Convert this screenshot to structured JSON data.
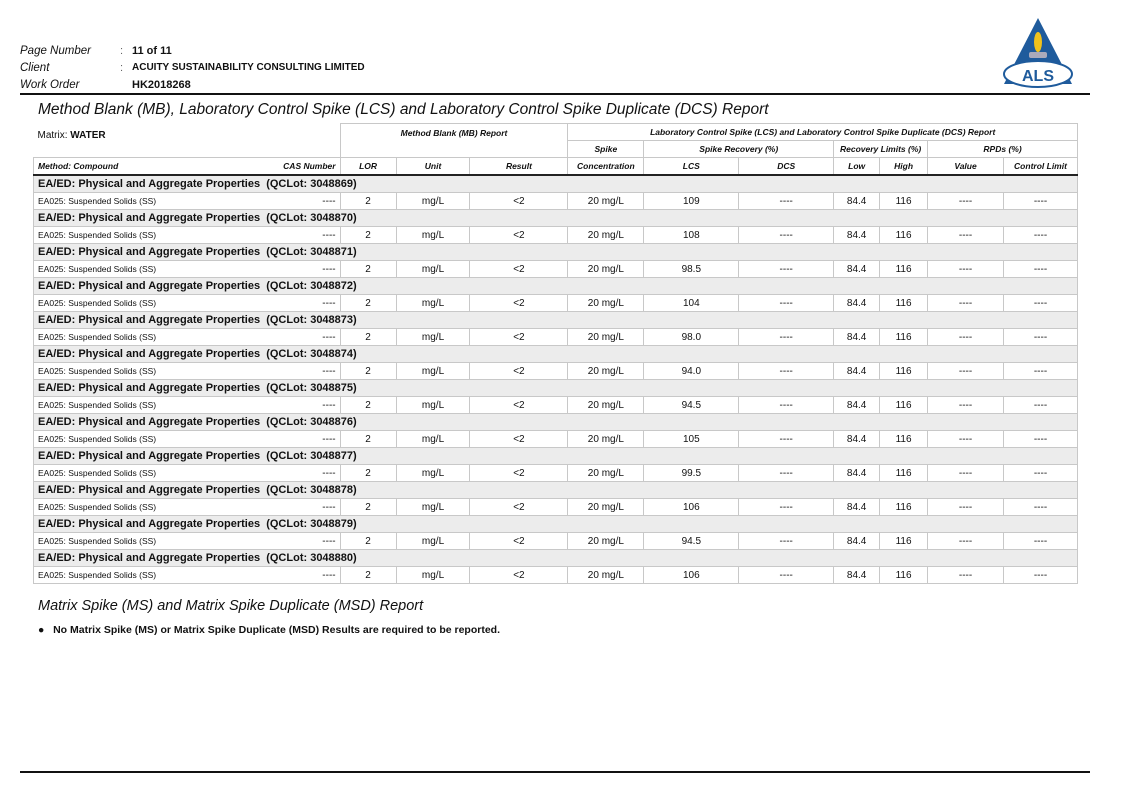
{
  "header": {
    "page_label": "Page Number",
    "page_value": "11 of 11",
    "client_label": "Client",
    "client_value": "ACUITY SUSTAINABILITY CONSULTING LIMITED",
    "wo_label": "Work Order",
    "wo_value": "HK2018268",
    "logo_text": "ALS"
  },
  "title": "Method Blank (MB), Laboratory Control Spike (LCS) and Laboratory Control Spike Duplicate (DCS) Report",
  "matrix_label": "Matrix: ",
  "matrix_value": "WATER",
  "table_headers": {
    "mb_report": "Method Blank (MB) Report",
    "lcs_report": "Laboratory Control Spike (LCS) and Laboratory Control Spike Duplicate (DCS) Report",
    "spike": "Spike",
    "spike_recovery": "Spike Recovery (%)",
    "recovery_limits": "Recovery Limits (%)",
    "rpds": "RPDs (%)",
    "method_compound": "Method: Compound",
    "cas": "CAS Number",
    "lor": "LOR",
    "unit": "Unit",
    "result": "Result",
    "concentration": "Concentration",
    "lcs": "LCS",
    "dcs": "DCS",
    "low": "Low",
    "high": "High",
    "value": "Value",
    "control_limit": "Control Limit"
  },
  "groups": [
    {
      "title": "EA/ED: Physical and Aggregate Properties  (QCLot: 3048869)",
      "row": [
        "EA025: Suspended Solids (SS)",
        "----",
        "2",
        "mg/L",
        "<2",
        "20 mg/L",
        "109",
        "----",
        "84.4",
        "116",
        "----",
        "----"
      ]
    },
    {
      "title": "EA/ED: Physical and Aggregate Properties  (QCLot: 3048870)",
      "row": [
        "EA025: Suspended Solids (SS)",
        "----",
        "2",
        "mg/L",
        "<2",
        "20 mg/L",
        "108",
        "----",
        "84.4",
        "116",
        "----",
        "----"
      ]
    },
    {
      "title": "EA/ED: Physical and Aggregate Properties  (QCLot: 3048871)",
      "row": [
        "EA025: Suspended Solids (SS)",
        "----",
        "2",
        "mg/L",
        "<2",
        "20 mg/L",
        "98.5",
        "----",
        "84.4",
        "116",
        "----",
        "----"
      ]
    },
    {
      "title": "EA/ED: Physical and Aggregate Properties  (QCLot: 3048872)",
      "row": [
        "EA025: Suspended Solids (SS)",
        "----",
        "2",
        "mg/L",
        "<2",
        "20 mg/L",
        "104",
        "----",
        "84.4",
        "116",
        "----",
        "----"
      ]
    },
    {
      "title": "EA/ED: Physical and Aggregate Properties  (QCLot: 3048873)",
      "row": [
        "EA025: Suspended Solids (SS)",
        "----",
        "2",
        "mg/L",
        "<2",
        "20 mg/L",
        "98.0",
        "----",
        "84.4",
        "116",
        "----",
        "----"
      ]
    },
    {
      "title": "EA/ED: Physical and Aggregate Properties  (QCLot: 3048874)",
      "row": [
        "EA025: Suspended Solids (SS)",
        "----",
        "2",
        "mg/L",
        "<2",
        "20 mg/L",
        "94.0",
        "----",
        "84.4",
        "116",
        "----",
        "----"
      ]
    },
    {
      "title": "EA/ED: Physical and Aggregate Properties  (QCLot: 3048875)",
      "row": [
        "EA025: Suspended Solids (SS)",
        "----",
        "2",
        "mg/L",
        "<2",
        "20 mg/L",
        "94.5",
        "----",
        "84.4",
        "116",
        "----",
        "----"
      ]
    },
    {
      "title": "EA/ED: Physical and Aggregate Properties  (QCLot: 3048876)",
      "row": [
        "EA025: Suspended Solids (SS)",
        "----",
        "2",
        "mg/L",
        "<2",
        "20 mg/L",
        "105",
        "----",
        "84.4",
        "116",
        "----",
        "----"
      ]
    },
    {
      "title": "EA/ED: Physical and Aggregate Properties  (QCLot: 3048877)",
      "row": [
        "EA025: Suspended Solids (SS)",
        "----",
        "2",
        "mg/L",
        "<2",
        "20 mg/L",
        "99.5",
        "----",
        "84.4",
        "116",
        "----",
        "----"
      ]
    },
    {
      "title": "EA/ED: Physical and Aggregate Properties  (QCLot: 3048878)",
      "row": [
        "EA025: Suspended Solids (SS)",
        "----",
        "2",
        "mg/L",
        "<2",
        "20 mg/L",
        "106",
        "----",
        "84.4",
        "116",
        "----",
        "----"
      ]
    },
    {
      "title": "EA/ED: Physical and Aggregate Properties  (QCLot: 3048879)",
      "row": [
        "EA025: Suspended Solids (SS)",
        "----",
        "2",
        "mg/L",
        "<2",
        "20 mg/L",
        "94.5",
        "----",
        "84.4",
        "116",
        "----",
        "----"
      ]
    },
    {
      "title": "EA/ED: Physical and Aggregate Properties  (QCLot: 3048880)",
      "row": [
        "EA025: Suspended Solids (SS)",
        "----",
        "2",
        "mg/L",
        "<2",
        "20 mg/L",
        "106",
        "----",
        "84.4",
        "116",
        "----",
        "----"
      ]
    }
  ],
  "ms_title": "Matrix Spike (MS) and Matrix Spike Duplicate (MSD) Report",
  "ms_note": "No Matrix Spike (MS) or Matrix Spike Duplicate (MSD) Results are required to be reported.",
  "colors": {
    "logo_blue": "#1f5b9c",
    "flame": "#f2c21b",
    "group_bg": "#ececec"
  }
}
